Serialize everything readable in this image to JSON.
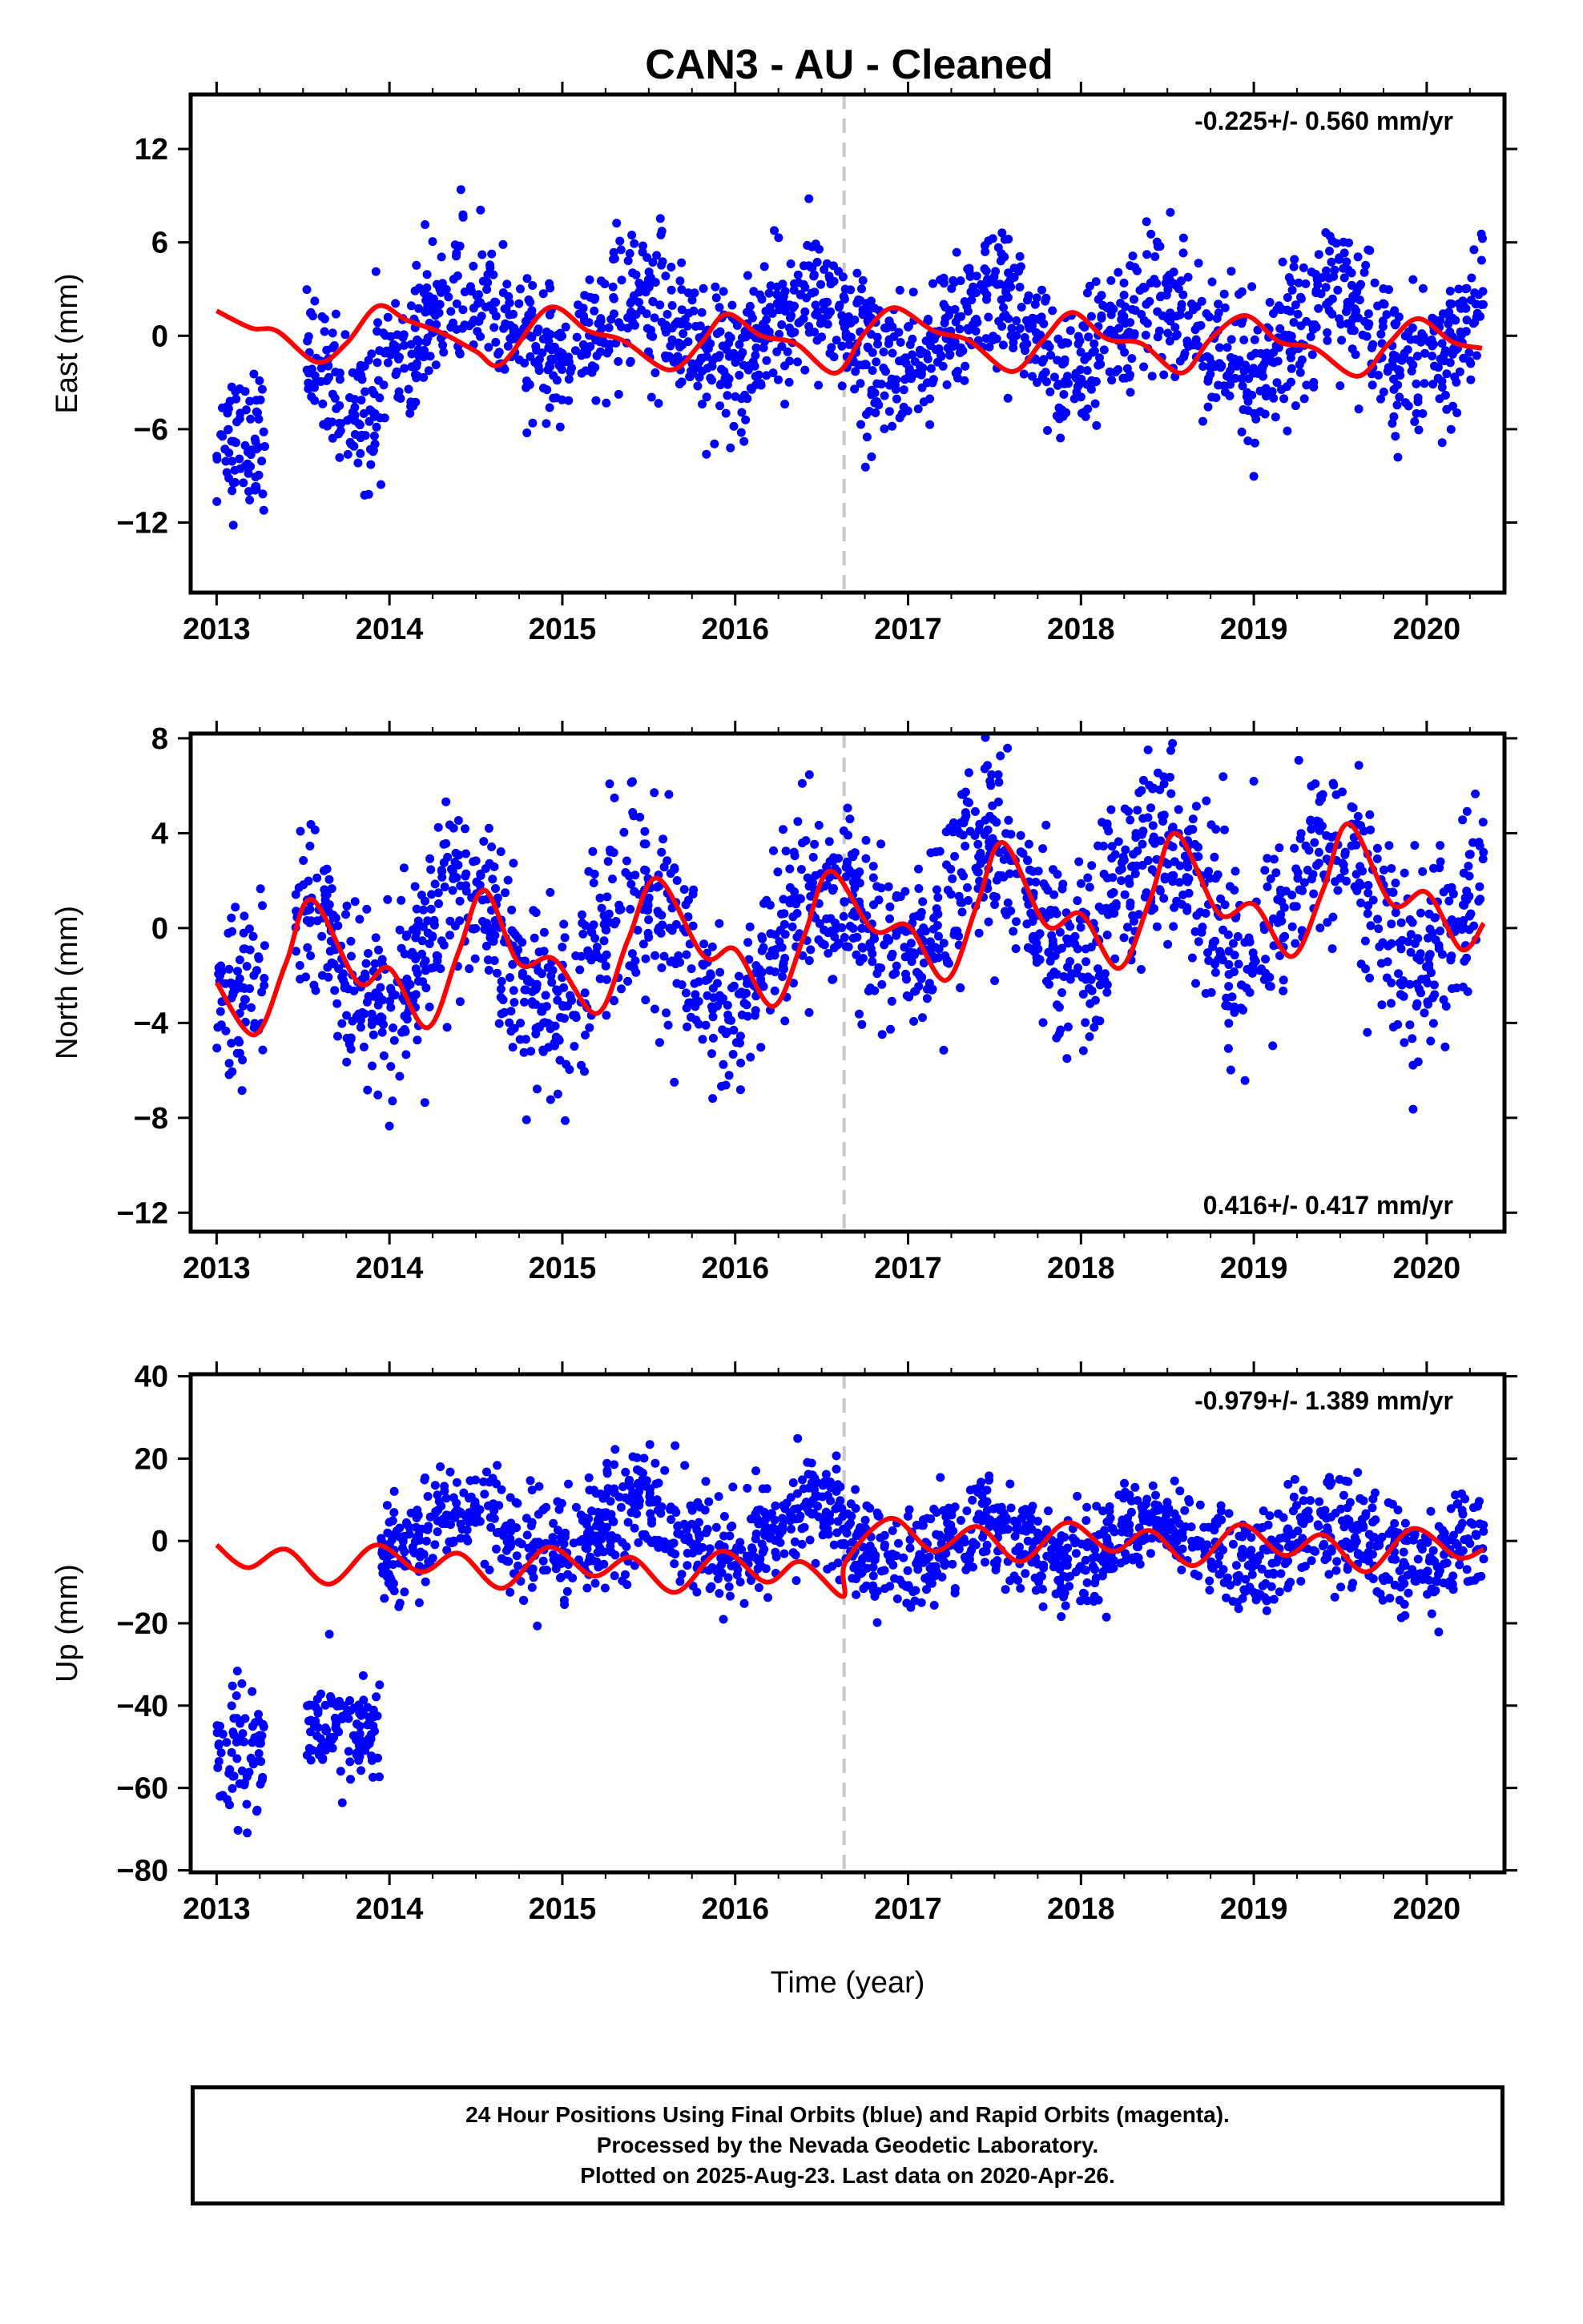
{
  "title": "CAN3  - AU - Cleaned",
  "xlabel": "Time (year)",
  "footer": {
    "lines": [
      "24 Hour Positions Using Final Orbits (blue) and Rapid Orbits (magenta).",
      "Processed by the Nevada Geodetic Laboratory.",
      "Plotted on 2025-Aug-23. Last data on 2020-Apr-26."
    ]
  },
  "colors": {
    "points": "#0000ff",
    "model": "#ff0000",
    "break_line": "#c8c8c8",
    "frame": "#000000"
  },
  "chart_data": [
    {
      "type": "scatter",
      "ylabel": "East (mm)",
      "xlim": [
        2012.85,
        2020.45
      ],
      "ylim": [
        -16.5,
        15.5
      ],
      "xticks": [
        2013,
        2014,
        2015,
        2016,
        2017,
        2018,
        2019,
        2020
      ],
      "yticks": [
        12,
        6,
        0,
        -6,
        -12
      ],
      "rate_label": "-0.225+/- 0.560 mm/yr",
      "rate_position": "top-right",
      "break_epoch": 2016.63,
      "segments": [
        {
          "x0": 2013.0,
          "x1": 2013.28,
          "mean": -6.5,
          "amp": 0.6,
          "noise": 2.2
        },
        {
          "x0": 2013.52,
          "x1": 2013.92,
          "mean": -3.5,
          "amp": 2.0,
          "noise": 2.2
        },
        {
          "x0": 2013.92,
          "x1": 2016.63,
          "mean": 0.3,
          "amp": 2.2,
          "noise": 2.2
        },
        {
          "x0": 2016.63,
          "x1": 2020.33,
          "mean": 0.0,
          "amp": 2.4,
          "noise": 2.3
        }
      ],
      "model": [
        {
          "x": 2013.0,
          "y": 1.6
        },
        {
          "x": 2013.2,
          "y": 0.5
        },
        {
          "x": 2013.35,
          "y": 0.3
        },
        {
          "x": 2013.58,
          "y": -1.7
        },
        {
          "x": 2013.75,
          "y": -0.5
        },
        {
          "x": 2013.93,
          "y": 1.9
        },
        {
          "x": 2014.1,
          "y": 1.0
        },
        {
          "x": 2014.3,
          "y": 0.2
        },
        {
          "x": 2014.5,
          "y": -1.0
        },
        {
          "x": 2014.65,
          "y": -1.8
        },
        {
          "x": 2014.92,
          "y": 1.8
        },
        {
          "x": 2015.15,
          "y": 0.3
        },
        {
          "x": 2015.35,
          "y": -0.3
        },
        {
          "x": 2015.62,
          "y": -2.2
        },
        {
          "x": 2015.8,
          "y": -0.5
        },
        {
          "x": 2015.95,
          "y": 1.4
        },
        {
          "x": 2016.15,
          "y": 0.0
        },
        {
          "x": 2016.35,
          "y": -0.5
        },
        {
          "x": 2016.58,
          "y": -2.4
        },
        {
          "x": 2016.75,
          "y": 0.2
        },
        {
          "x": 2016.92,
          "y": 1.8
        },
        {
          "x": 2017.15,
          "y": 0.3
        },
        {
          "x": 2017.35,
          "y": -0.3
        },
        {
          "x": 2017.6,
          "y": -2.3
        },
        {
          "x": 2017.78,
          "y": -0.3
        },
        {
          "x": 2017.95,
          "y": 1.5
        },
        {
          "x": 2018.15,
          "y": -0.2
        },
        {
          "x": 2018.35,
          "y": -0.5
        },
        {
          "x": 2018.58,
          "y": -2.4
        },
        {
          "x": 2018.75,
          "y": -0.2
        },
        {
          "x": 2018.95,
          "y": 1.3
        },
        {
          "x": 2019.15,
          "y": -0.4
        },
        {
          "x": 2019.35,
          "y": -0.8
        },
        {
          "x": 2019.6,
          "y": -2.6
        },
        {
          "x": 2019.78,
          "y": -0.5
        },
        {
          "x": 2019.95,
          "y": 1.1
        },
        {
          "x": 2020.15,
          "y": -0.4
        },
        {
          "x": 2020.32,
          "y": -0.8
        }
      ]
    },
    {
      "type": "scatter",
      "ylabel": "North (mm)",
      "xlim": [
        2012.85,
        2020.45
      ],
      "ylim": [
        -12.8,
        8.2
      ],
      "xticks": [
        2013,
        2014,
        2015,
        2016,
        2017,
        2018,
        2019,
        2020
      ],
      "yticks": [
        8,
        4,
        0,
        -4,
        -8,
        -12
      ],
      "rate_label": "0.416+/- 0.417 mm/yr",
      "rate_position": "bottom-right",
      "break_epoch": 2016.63,
      "segments": [
        {
          "x0": 2013.0,
          "x1": 2013.28,
          "mean": -2.2,
          "amp": 1.5,
          "noise": 2.0
        },
        {
          "x0": 2013.45,
          "x1": 2016.63,
          "mean": -1.0,
          "amp": 2.5,
          "noise": 1.9
        },
        {
          "x0": 2016.63,
          "x1": 2020.33,
          "mean": 1.0,
          "amp": 2.5,
          "noise": 2.0
        }
      ],
      "model": [
        {
          "x": 2013.0,
          "y": -2.3
        },
        {
          "x": 2013.22,
          "y": -4.5
        },
        {
          "x": 2013.4,
          "y": -1.5
        },
        {
          "x": 2013.55,
          "y": 1.2
        },
        {
          "x": 2013.82,
          "y": -2.3
        },
        {
          "x": 2014.0,
          "y": -1.7
        },
        {
          "x": 2014.22,
          "y": -4.2
        },
        {
          "x": 2014.4,
          "y": -1.0
        },
        {
          "x": 2014.55,
          "y": 1.6
        },
        {
          "x": 2014.75,
          "y": -1.5
        },
        {
          "x": 2014.95,
          "y": -1.3
        },
        {
          "x": 2015.2,
          "y": -3.6
        },
        {
          "x": 2015.38,
          "y": -0.5
        },
        {
          "x": 2015.55,
          "y": 2.1
        },
        {
          "x": 2015.82,
          "y": -1.2
        },
        {
          "x": 2016.0,
          "y": -0.9
        },
        {
          "x": 2016.22,
          "y": -3.3
        },
        {
          "x": 2016.4,
          "y": -0.3
        },
        {
          "x": 2016.55,
          "y": 2.4
        },
        {
          "x": 2016.8,
          "y": -0.1
        },
        {
          "x": 2017.0,
          "y": 0.1
        },
        {
          "x": 2017.22,
          "y": -2.2
        },
        {
          "x": 2017.4,
          "y": 1.0
        },
        {
          "x": 2017.55,
          "y": 3.6
        },
        {
          "x": 2017.8,
          "y": 0.1
        },
        {
          "x": 2018.0,
          "y": 0.6
        },
        {
          "x": 2018.22,
          "y": -1.7
        },
        {
          "x": 2018.4,
          "y": 1.2
        },
        {
          "x": 2018.55,
          "y": 4.0
        },
        {
          "x": 2018.8,
          "y": 0.6
        },
        {
          "x": 2019.0,
          "y": 1.0
        },
        {
          "x": 2019.22,
          "y": -1.2
        },
        {
          "x": 2019.4,
          "y": 1.6
        },
        {
          "x": 2019.55,
          "y": 4.4
        },
        {
          "x": 2019.8,
          "y": 1.0
        },
        {
          "x": 2020.0,
          "y": 1.5
        },
        {
          "x": 2020.2,
          "y": -0.9
        },
        {
          "x": 2020.33,
          "y": 0.2
        }
      ]
    },
    {
      "type": "scatter",
      "ylabel": "Up (mm)",
      "xlim": [
        2012.85,
        2020.45
      ],
      "ylim": [
        -80.5,
        40.5
      ],
      "xticks": [
        2013,
        2014,
        2015,
        2016,
        2017,
        2018,
        2019,
        2020
      ],
      "yticks": [
        40,
        20,
        0,
        -20,
        -40,
        -60,
        -80
      ],
      "rate_label": "-0.979+/- 1.389 mm/yr",
      "rate_position": "top-right",
      "break_epoch": 2016.63,
      "segments": [
        {
          "x0": 2013.0,
          "x1": 2013.28,
          "mean": -50.0,
          "amp": 3.0,
          "noise": 8.0
        },
        {
          "x0": 2013.52,
          "x1": 2013.95,
          "mean": -45.0,
          "amp": 3.0,
          "noise": 6.5
        },
        {
          "x0": 2013.95,
          "x1": 2016.63,
          "mean": 2.0,
          "amp": 6.0,
          "noise": 6.5
        },
        {
          "x0": 2016.63,
          "x1": 2020.33,
          "mean": -1.0,
          "amp": 5.0,
          "noise": 6.0
        }
      ],
      "model": [
        {
          "x": 2013.0,
          "y": -1.0
        },
        {
          "x": 2013.18,
          "y": -6.5
        },
        {
          "x": 2013.4,
          "y": -2.0
        },
        {
          "x": 2013.65,
          "y": -10.5
        },
        {
          "x": 2013.92,
          "y": -1.0
        },
        {
          "x": 2014.18,
          "y": -7.5
        },
        {
          "x": 2014.4,
          "y": -3.0
        },
        {
          "x": 2014.65,
          "y": -11.5
        },
        {
          "x": 2014.92,
          "y": -1.5
        },
        {
          "x": 2015.18,
          "y": -8.5
        },
        {
          "x": 2015.4,
          "y": -4.0
        },
        {
          "x": 2015.65,
          "y": -12.5
        },
        {
          "x": 2015.92,
          "y": -2.5
        },
        {
          "x": 2016.18,
          "y": -10.0
        },
        {
          "x": 2016.38,
          "y": -5.0
        },
        {
          "x": 2016.62,
          "y": -13.5
        },
        {
          "x": 2016.64,
          "y": -5.0
        },
        {
          "x": 2016.9,
          "y": 5.5
        },
        {
          "x": 2017.15,
          "y": -2.5
        },
        {
          "x": 2017.4,
          "y": 3.5
        },
        {
          "x": 2017.65,
          "y": -5.0
        },
        {
          "x": 2017.92,
          "y": 4.5
        },
        {
          "x": 2018.18,
          "y": -2.5
        },
        {
          "x": 2018.4,
          "y": 2.5
        },
        {
          "x": 2018.65,
          "y": -6.0
        },
        {
          "x": 2018.92,
          "y": 4.0
        },
        {
          "x": 2019.18,
          "y": -3.5
        },
        {
          "x": 2019.4,
          "y": 1.5
        },
        {
          "x": 2019.65,
          "y": -7.5
        },
        {
          "x": 2019.92,
          "y": 3.0
        },
        {
          "x": 2020.18,
          "y": -4.0
        },
        {
          "x": 2020.33,
          "y": -2.0
        }
      ]
    }
  ]
}
